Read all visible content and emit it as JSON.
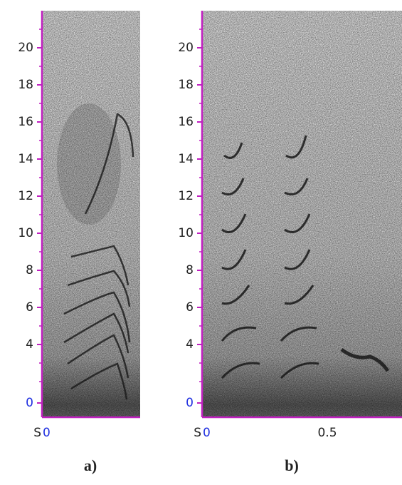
{
  "panels": [
    {
      "yticks": [
        0,
        4,
        6,
        8,
        10,
        12,
        14,
        16,
        18,
        20
      ],
      "x_prefix": "S",
      "xticks": [
        0
      ],
      "caption": "a)"
    },
    {
      "yticks": [
        0,
        4,
        6,
        8,
        10,
        12,
        14,
        16,
        18,
        20
      ],
      "x_prefix": "S",
      "xticks": [
        0,
        0.5
      ],
      "caption": "b)"
    }
  ]
}
